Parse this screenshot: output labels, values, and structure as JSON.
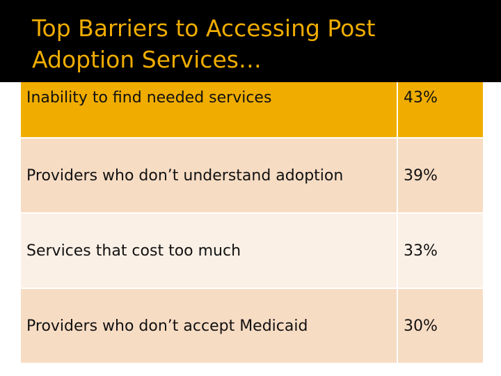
{
  "slide": {
    "title": "Top Barriers to Accessing Post Adoption Services…"
  },
  "table": {
    "rows": [
      {
        "label": "Inability to find needed services",
        "value": "43%"
      },
      {
        "label": "Providers who don’t understand adoption",
        "value": "39%"
      },
      {
        "label": "Services that cost too much",
        "value": "33%"
      },
      {
        "label": "Providers who don’t accept Medicaid",
        "value": "30%"
      }
    ]
  },
  "colors": {
    "accent": "#f0ad00",
    "title_bg": "#000000",
    "row_dark": "#f7dcc4",
    "row_light": "#fbf0e6"
  }
}
